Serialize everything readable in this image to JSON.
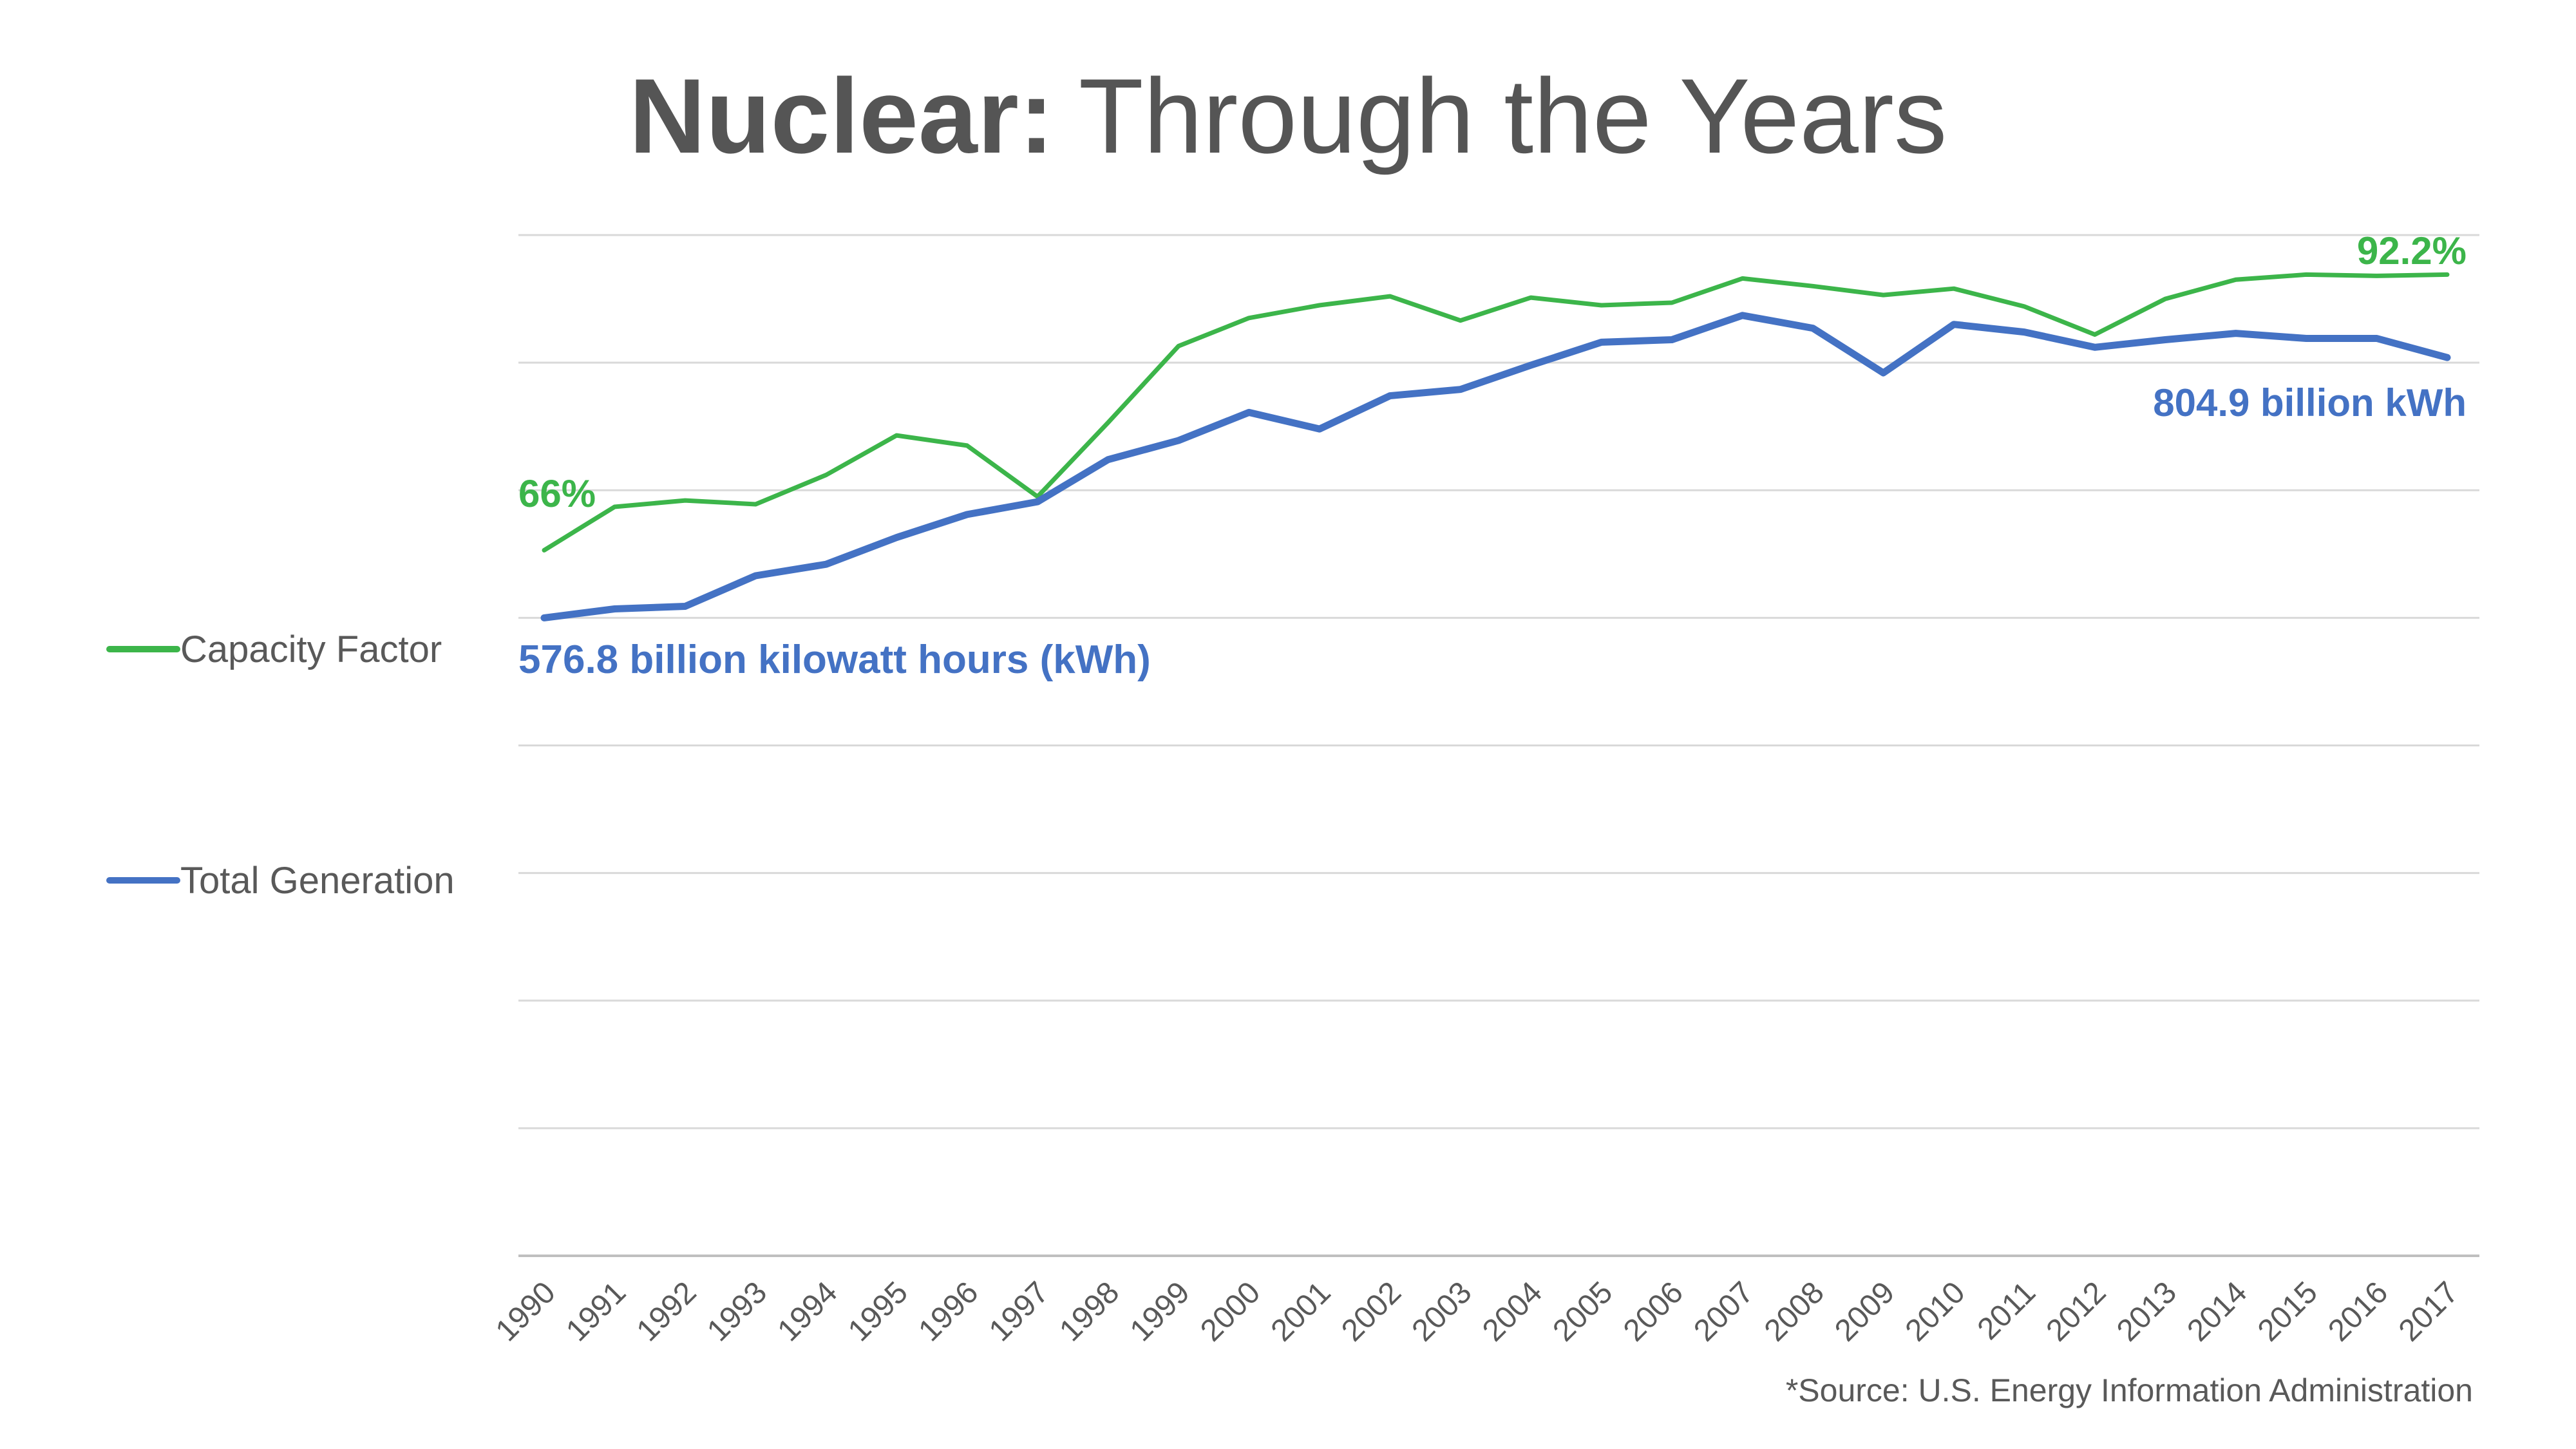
{
  "title": {
    "bold": "Nuclear:",
    "light": "Through the Years"
  },
  "source": "*Source: U.S. Energy Information Administration",
  "colors": {
    "capacity": "#3CB54A",
    "generation": "#4472C4",
    "grid": "#D9D9D9",
    "text": "#595959",
    "title": "#555555"
  },
  "legend": [
    {
      "name": "Capacity Factor",
      "color": "#3CB54A"
    },
    {
      "name": "Total Generation",
      "color": "#4472C4"
    }
  ],
  "annotations": {
    "capacity_start": "66%",
    "capacity_end": "92.2%",
    "generation_start": "576.8 billion kilowatt hours (kWh)",
    "generation_end": "804.9 billion kWh"
  },
  "chart_data": {
    "type": "line",
    "title": "Nuclear: Through the Years",
    "xlabel": "",
    "ylabel": "",
    "grid": true,
    "legend_position": "left",
    "ylim": [
      0,
      8
    ],
    "gridline_count": 9,
    "x": [
      "1990",
      "1991",
      "1992",
      "1993",
      "1994",
      "1995",
      "1996",
      "1997",
      "1998",
      "1999",
      "2000",
      "2001",
      "2002",
      "2003",
      "2004",
      "2005",
      "2006",
      "2007",
      "2008",
      "2009",
      "2010",
      "2011",
      "2012",
      "2013",
      "2014",
      "2015",
      "2016",
      "2017"
    ],
    "series": [
      {
        "name": "Capacity Factor",
        "color": "#3CB54A",
        "values": [
          5.53,
          5.87,
          5.92,
          5.89,
          6.12,
          6.43,
          6.35,
          5.95,
          6.53,
          7.13,
          7.35,
          7.45,
          7.52,
          7.33,
          7.51,
          7.45,
          7.47,
          7.66,
          7.6,
          7.53,
          7.58,
          7.44,
          7.22,
          7.5,
          7.65,
          7.69,
          7.68,
          7.69
        ]
      },
      {
        "name": "Total Generation",
        "color": "#4472C4",
        "values": [
          5.0,
          5.07,
          5.09,
          5.33,
          5.42,
          5.63,
          5.81,
          5.91,
          6.24,
          6.39,
          6.61,
          6.48,
          6.74,
          6.79,
          6.98,
          7.16,
          7.18,
          7.37,
          7.27,
          6.92,
          7.3,
          7.24,
          7.12,
          7.18,
          7.23,
          7.19,
          7.19,
          7.04
        ]
      }
    ]
  }
}
